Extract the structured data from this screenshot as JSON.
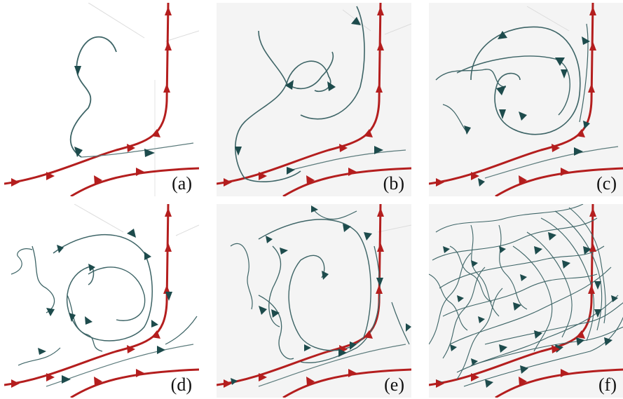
{
  "panels": [
    {
      "label": "(a)"
    },
    {
      "label": "(b)"
    },
    {
      "label": "(c)"
    },
    {
      "label": "(d)"
    },
    {
      "label": "(e)"
    },
    {
      "label": "(f)"
    }
  ],
  "colors": {
    "main_streamline": "#b41e1e",
    "particle_path": "#3d6466",
    "arrow": "#1d4b4c",
    "background_panels": "#f3f3f3",
    "guide_lines": "#d8d8d8"
  }
}
